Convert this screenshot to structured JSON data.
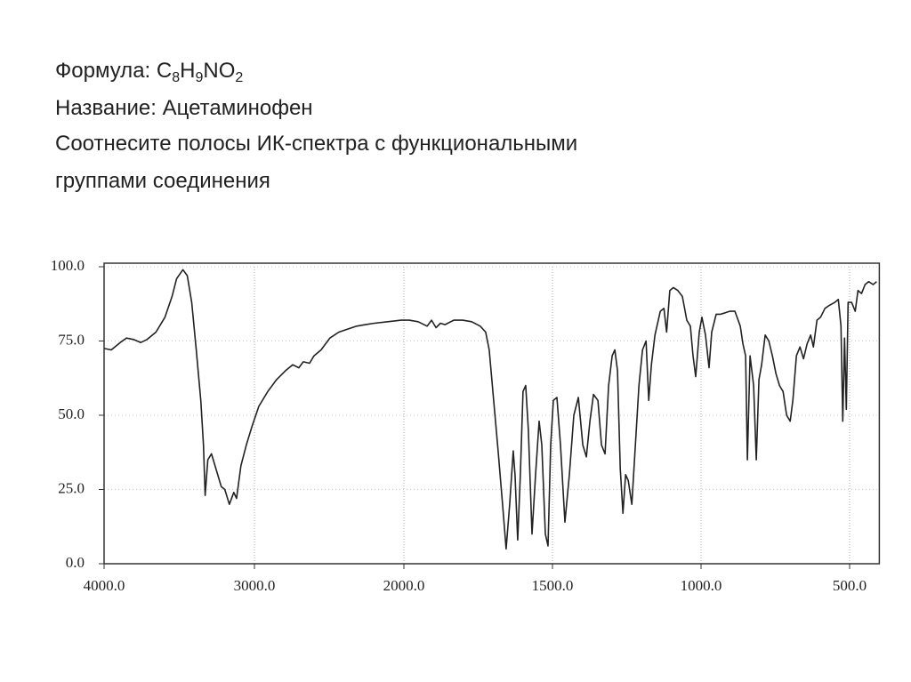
{
  "header": {
    "formula_label": "Формула:",
    "formula_parts": [
      "C",
      "8",
      "H",
      "9",
      "NO",
      "2"
    ],
    "name_line": "Название: Ацетаминофен",
    "task_lines": [
      "Соотнесите полосы ИК-спектра с функциональными",
      "группами соединения"
    ]
  },
  "chart_data": {
    "type": "line",
    "color": "#222222",
    "grid": true,
    "xlim": [
      4000,
      400
    ],
    "ylim": [
      0,
      100
    ],
    "xticks": [
      {
        "value": 4000,
        "label": "4000.0"
      },
      {
        "value": 3000,
        "label": "3000.0"
      },
      {
        "value": 2000,
        "label": "2000.0"
      },
      {
        "value": 1500,
        "label": "1500.0"
      },
      {
        "value": 1000,
        "label": "1000.0"
      },
      {
        "value": 500,
        "label": "500.0"
      }
    ],
    "yticks": [
      {
        "value": 0,
        "label": "0.0"
      },
      {
        "value": 25,
        "label": "25.0"
      },
      {
        "value": 50,
        "label": "50.0"
      },
      {
        "value": 75,
        "label": "75.0"
      },
      {
        "value": 100,
        "label": "100.0"
      }
    ],
    "x": [
      4000,
      3952,
      3893,
      3851,
      3804,
      3756,
      3714,
      3655,
      3595,
      3548,
      3518,
      3476,
      3447,
      3417,
      3387,
      3357,
      3339,
      3328,
      3310,
      3286,
      3256,
      3221,
      3197,
      3167,
      3137,
      3119,
      3090,
      3054,
      3018,
      2971,
      2911,
      2852,
      2792,
      2744,
      2703,
      2673,
      2631,
      2602,
      2554,
      2495,
      2435,
      2376,
      2316,
      2257,
      2197,
      2108,
      2018,
      1982,
      1952,
      1922,
      1907,
      1892,
      1877,
      1862,
      1832,
      1802,
      1772,
      1743,
      1725,
      1713,
      1698,
      1683,
      1668,
      1656,
      1644,
      1632,
      1626,
      1617,
      1608,
      1599,
      1590,
      1581,
      1569,
      1557,
      1545,
      1536,
      1524,
      1515,
      1506,
      1497,
      1485,
      1473,
      1458,
      1443,
      1428,
      1413,
      1398,
      1386,
      1374,
      1362,
      1347,
      1335,
      1323,
      1311,
      1299,
      1290,
      1281,
      1272,
      1263,
      1254,
      1245,
      1233,
      1221,
      1209,
      1197,
      1185,
      1176,
      1167,
      1155,
      1137,
      1125,
      1116,
      1105,
      1093,
      1078,
      1063,
      1048,
      1036,
      1027,
      1018,
      1006,
      997,
      985,
      973,
      964,
      949,
      934,
      919,
      904,
      886,
      868,
      859,
      850,
      844,
      835,
      823,
      814,
      805,
      796,
      784,
      772,
      760,
      748,
      736,
      724,
      712,
      700,
      691,
      679,
      667,
      655,
      643,
      631,
      622,
      610,
      598,
      583,
      568,
      550,
      538,
      529,
      523,
      517,
      511,
      505,
      493,
      481,
      472,
      460,
      448,
      436,
      421,
      409
    ],
    "values": [
      72.5,
      72,
      74.5,
      76,
      75.5,
      74.5,
      75.5,
      78,
      83,
      90,
      96,
      99,
      97,
      88,
      72,
      55,
      40,
      23,
      35,
      37,
      32,
      26,
      25,
      20,
      24,
      22,
      33,
      40,
      46,
      53,
      58,
      62,
      65,
      67,
      66,
      68,
      67.5,
      70,
      72,
      76,
      78,
      79,
      80,
      80.5,
      81,
      81.5,
      82,
      82,
      81.5,
      80,
      82,
      79.5,
      81,
      80.5,
      82,
      82,
      81.5,
      80,
      78,
      72,
      55,
      38,
      20,
      5,
      20,
      38,
      30,
      8,
      30,
      58,
      60,
      45,
      10,
      30,
      48,
      40,
      10,
      6,
      40,
      55,
      56,
      40,
      14,
      30,
      50,
      56,
      40,
      36,
      48,
      57,
      55,
      40,
      37,
      60,
      70,
      72,
      65,
      32,
      17,
      30,
      28,
      20,
      40,
      60,
      72,
      75,
      55,
      67,
      77,
      85,
      86,
      78,
      92,
      93,
      92,
      90,
      82,
      80,
      70,
      63,
      78,
      83,
      77,
      66,
      78,
      84,
      84,
      84.5,
      85,
      85,
      80,
      74,
      70,
      35,
      70,
      60,
      35,
      62,
      67,
      77,
      75,
      70,
      64,
      60,
      58,
      50,
      48,
      55,
      70,
      73,
      69,
      74,
      77,
      73,
      82,
      83,
      86,
      87,
      88,
      89,
      80,
      48,
      76,
      52,
      88,
      88,
      85,
      92,
      91,
      94,
      95,
      94,
      95
    ]
  }
}
